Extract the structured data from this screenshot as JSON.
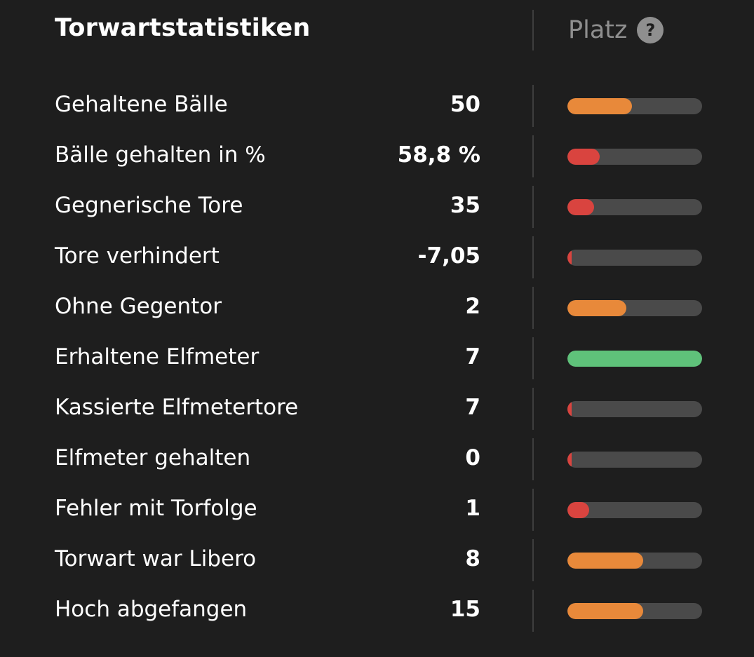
{
  "header": {
    "title": "Torwartstatistiken",
    "rank_label": "Platz",
    "help_icon": "question-mark-icon",
    "help_glyph": "?"
  },
  "colors": {
    "orange": "#e8893a",
    "red": "#d9443f",
    "green": "#5fc27a",
    "track": "#4a4a4a"
  },
  "stats": [
    {
      "label": "Gehaltene Bälle",
      "value": "50",
      "rank_level": 0.48,
      "color": "orange"
    },
    {
      "label": "Bälle gehalten in %",
      "value": "58,8 %",
      "rank_level": 0.24,
      "color": "red"
    },
    {
      "label": "Gegnerische Tore",
      "value": "35",
      "rank_level": 0.2,
      "color": "red"
    },
    {
      "label": "Tore verhindert",
      "value": "-7,05",
      "rank_level": 0.03,
      "color": "red"
    },
    {
      "label": "Ohne Gegentor",
      "value": "2",
      "rank_level": 0.44,
      "color": "orange"
    },
    {
      "label": "Erhaltene Elfmeter",
      "value": "7",
      "rank_level": 1.0,
      "color": "green"
    },
    {
      "label": "Kassierte Elfmetertore",
      "value": "7",
      "rank_level": 0.03,
      "color": "red"
    },
    {
      "label": "Elfmeter gehalten",
      "value": "0",
      "rank_level": 0.03,
      "color": "red"
    },
    {
      "label": "Fehler mit Torfolge",
      "value": "1",
      "rank_level": 0.16,
      "color": "red"
    },
    {
      "label": "Torwart war Libero",
      "value": "8",
      "rank_level": 0.56,
      "color": "orange"
    },
    {
      "label": "Hoch abgefangen",
      "value": "15",
      "rank_level": 0.56,
      "color": "orange"
    }
  ]
}
